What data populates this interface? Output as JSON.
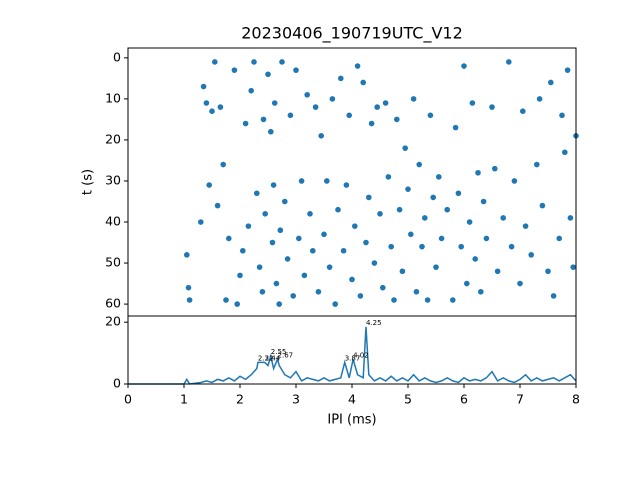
{
  "chart_data": [
    {
      "type": "scatter",
      "title": "20230406_190719UTC_V12",
      "ylabel": "t (s)",
      "color": "#1f77b4",
      "x": [
        1.05,
        1.08,
        1.1,
        1.3,
        1.35,
        1.4,
        1.45,
        1.5,
        1.55,
        1.6,
        1.65,
        1.7,
        1.75,
        1.8,
        1.9,
        1.95,
        2.0,
        2.05,
        2.1,
        2.15,
        2.2,
        2.25,
        2.3,
        2.35,
        2.4,
        2.42,
        2.45,
        2.5,
        2.55,
        2.58,
        2.6,
        2.62,
        2.65,
        2.7,
        2.72,
        2.75,
        2.8,
        2.85,
        2.9,
        2.95,
        3.0,
        3.05,
        3.1,
        3.15,
        3.2,
        3.25,
        3.3,
        3.35,
        3.4,
        3.45,
        3.5,
        3.55,
        3.6,
        3.65,
        3.7,
        3.75,
        3.8,
        3.85,
        3.9,
        3.95,
        4.0,
        4.05,
        4.1,
        4.15,
        4.2,
        4.25,
        4.3,
        4.35,
        4.4,
        4.45,
        4.5,
        4.55,
        4.6,
        4.65,
        4.7,
        4.75,
        4.8,
        4.85,
        4.9,
        4.95,
        5.0,
        5.05,
        5.1,
        5.15,
        5.2,
        5.25,
        5.3,
        5.35,
        5.4,
        5.45,
        5.5,
        5.55,
        5.6,
        5.7,
        5.8,
        5.85,
        5.9,
        5.95,
        6.0,
        6.05,
        6.1,
        6.15,
        6.2,
        6.25,
        6.3,
        6.35,
        6.4,
        6.5,
        6.55,
        6.6,
        6.7,
        6.8,
        6.85,
        6.9,
        7.0,
        7.05,
        7.1,
        7.2,
        7.3,
        7.35,
        7.4,
        7.5,
        7.55,
        7.6,
        7.7,
        7.75,
        7.8,
        7.85,
        7.9,
        7.95,
        8.0
      ],
      "values": [
        48,
        56,
        59,
        40,
        7,
        11,
        31,
        13,
        1,
        36,
        12,
        26,
        59,
        44,
        3,
        60,
        53,
        47,
        16,
        41,
        8,
        1,
        33,
        51,
        57,
        15,
        38,
        4,
        18,
        45,
        31,
        11,
        55,
        60,
        42,
        1,
        35,
        49,
        14,
        58,
        3,
        44,
        30,
        53,
        9,
        38,
        47,
        12,
        57,
        19,
        43,
        30,
        51,
        10,
        60,
        37,
        5,
        47,
        31,
        14,
        54,
        41,
        2,
        58,
        6,
        45,
        34,
        16,
        50,
        12,
        38,
        56,
        11,
        29,
        46,
        59,
        15,
        37,
        52,
        22,
        32,
        43,
        10,
        57,
        26,
        46,
        39,
        59,
        14,
        34,
        51,
        29,
        44,
        37,
        59,
        17,
        33,
        46,
        2,
        55,
        40,
        11,
        49,
        28,
        57,
        35,
        44,
        12,
        27,
        52,
        39,
        1,
        46,
        30,
        55,
        13,
        41,
        48,
        26,
        10,
        36,
        52,
        6,
        58,
        44,
        14,
        23,
        3,
        39,
        51,
        19
      ],
      "xlim": [
        0,
        8
      ],
      "ylim": [
        62.9,
        -2.4
      ],
      "yticks": [
        0,
        10,
        20,
        30,
        40,
        50,
        60
      ]
    },
    {
      "type": "line",
      "xlabel": "IPI (ms)",
      "color": "#1f77b4",
      "x": [
        0,
        1.0,
        1.05,
        1.1,
        1.3,
        1.4,
        1.5,
        1.6,
        1.7,
        1.8,
        1.9,
        2.0,
        2.1,
        2.2,
        2.3,
        2.32,
        2.38,
        2.44,
        2.5,
        2.55,
        2.6,
        2.67,
        2.7,
        2.8,
        2.9,
        3.0,
        3.1,
        3.2,
        3.3,
        3.4,
        3.5,
        3.6,
        3.7,
        3.8,
        3.87,
        3.95,
        4.02,
        4.1,
        4.2,
        4.25,
        4.3,
        4.4,
        4.5,
        4.6,
        4.7,
        4.8,
        4.9,
        5.0,
        5.1,
        5.2,
        5.3,
        5.4,
        5.5,
        5.6,
        5.7,
        5.8,
        5.9,
        6.0,
        6.1,
        6.2,
        6.3,
        6.4,
        6.5,
        6.6,
        6.7,
        6.8,
        6.9,
        7.0,
        7.1,
        7.2,
        7.3,
        7.4,
        7.5,
        7.6,
        7.7,
        7.8,
        7.9,
        8.0
      ],
      "values": [
        0,
        0,
        1.5,
        0,
        0.5,
        1,
        0.5,
        1.5,
        1,
        2,
        1,
        2.5,
        1.5,
        3,
        5,
        7,
        7,
        7,
        6,
        9,
        5,
        8,
        6,
        3,
        2,
        4,
        1,
        2,
        1.5,
        1,
        2,
        1,
        1.5,
        2,
        7,
        2,
        8,
        3,
        2,
        18.5,
        3,
        1,
        2,
        1,
        2.5,
        1,
        2,
        1,
        3,
        1,
        2,
        1,
        0.5,
        1,
        2,
        1,
        0.5,
        2,
        1,
        1.5,
        1,
        2,
        4,
        1,
        2,
        1,
        0.5,
        1.5,
        3,
        1,
        2,
        1,
        1.5,
        2,
        1,
        2,
        3,
        1
      ],
      "xlim": [
        0,
        8
      ],
      "xticks": [
        0,
        1,
        2,
        3,
        4,
        5,
        6,
        7,
        8
      ],
      "ylim": [
        0,
        22
      ],
      "yticks": [
        0,
        20
      ],
      "annotations": [
        {
          "x": 2.32,
          "y": 7,
          "text": "2.32"
        },
        {
          "x": 2.44,
          "y": 7,
          "text": "2.44"
        },
        {
          "x": 2.55,
          "y": 9,
          "text": "2.55"
        },
        {
          "x": 2.67,
          "y": 8,
          "text": "2.67"
        },
        {
          "x": 3.87,
          "y": 7,
          "text": "3.87"
        },
        {
          "x": 4.02,
          "y": 8,
          "text": "4.02"
        },
        {
          "x": 4.25,
          "y": 18.5,
          "text": "4.25"
        }
      ]
    }
  ]
}
